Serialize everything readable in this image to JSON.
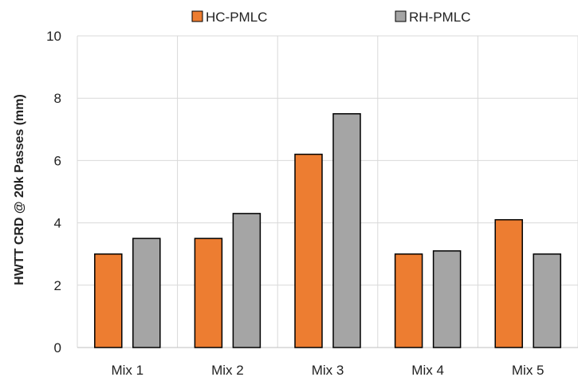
{
  "chart_data": {
    "type": "bar",
    "title": "",
    "xlabel": "",
    "ylabel": "HWTT CRD @ 20k Passes (mm)",
    "categories": [
      "Mix 1",
      "Mix 2",
      "Mix 3",
      "Mix 4",
      "Mix 5"
    ],
    "series": [
      {
        "name": "HC-PMLC",
        "color": "#ED7D31",
        "values": [
          3.0,
          3.5,
          6.2,
          3.0,
          4.1
        ]
      },
      {
        "name": "RH-PMLC",
        "color": "#A5A5A5",
        "values": [
          3.5,
          4.3,
          7.5,
          3.1,
          3.0
        ]
      }
    ],
    "ylim": [
      0,
      10
    ],
    "yticks": [
      0,
      2,
      4,
      6,
      8,
      10
    ],
    "grid": true,
    "legend_position": "top"
  }
}
